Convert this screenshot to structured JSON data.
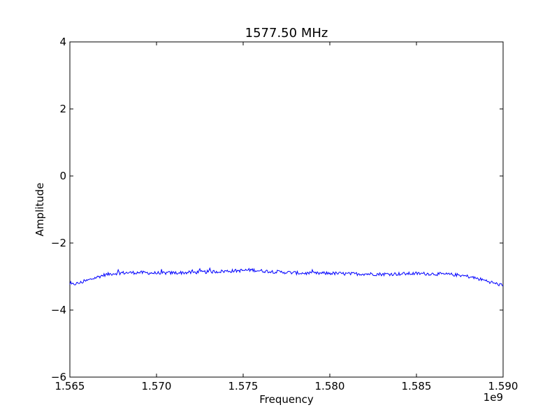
{
  "chart_data": {
    "type": "line",
    "title": "1577.50 MHz",
    "xlabel": "Frequency",
    "ylabel": "Amplitude",
    "x_offset_label": "1e9",
    "xlim": [
      1.565,
      1.59
    ],
    "ylim": [
      -6,
      4
    ],
    "x_ticks": [
      1.565,
      1.57,
      1.575,
      1.58,
      1.585,
      1.59
    ],
    "x_tick_labels": [
      "1.565",
      "1.570",
      "1.575",
      "1.580",
      "1.585",
      "1.590"
    ],
    "y_ticks": [
      -6,
      -4,
      -2,
      0,
      2,
      4
    ],
    "y_tick_labels": [
      "−6",
      "−4",
      "−2",
      "0",
      "2",
      "4"
    ],
    "grid": false,
    "series": [
      {
        "color": "#0000ff",
        "x": [
          1.565,
          1.5655,
          1.566,
          1.5665,
          1.567,
          1.5675,
          1.568,
          1.569,
          1.57,
          1.571,
          1.572,
          1.573,
          1.574,
          1.575,
          1.5755,
          1.576,
          1.577,
          1.578,
          1.579,
          1.58,
          1.581,
          1.582,
          1.583,
          1.584,
          1.585,
          1.586,
          1.587,
          1.5875,
          1.588,
          1.5885,
          1.589,
          1.5895,
          1.59
        ],
        "y": [
          -3.25,
          -3.2,
          -3.12,
          -3.03,
          -2.95,
          -2.91,
          -2.89,
          -2.88,
          -2.9,
          -2.89,
          -2.88,
          -2.86,
          -2.84,
          -2.82,
          -2.8,
          -2.83,
          -2.86,
          -2.89,
          -2.91,
          -2.9,
          -2.92,
          -2.92,
          -2.93,
          -2.92,
          -2.91,
          -2.92,
          -2.94,
          -2.96,
          -3.0,
          -3.06,
          -3.12,
          -3.2,
          -3.27
        ]
      }
    ]
  }
}
